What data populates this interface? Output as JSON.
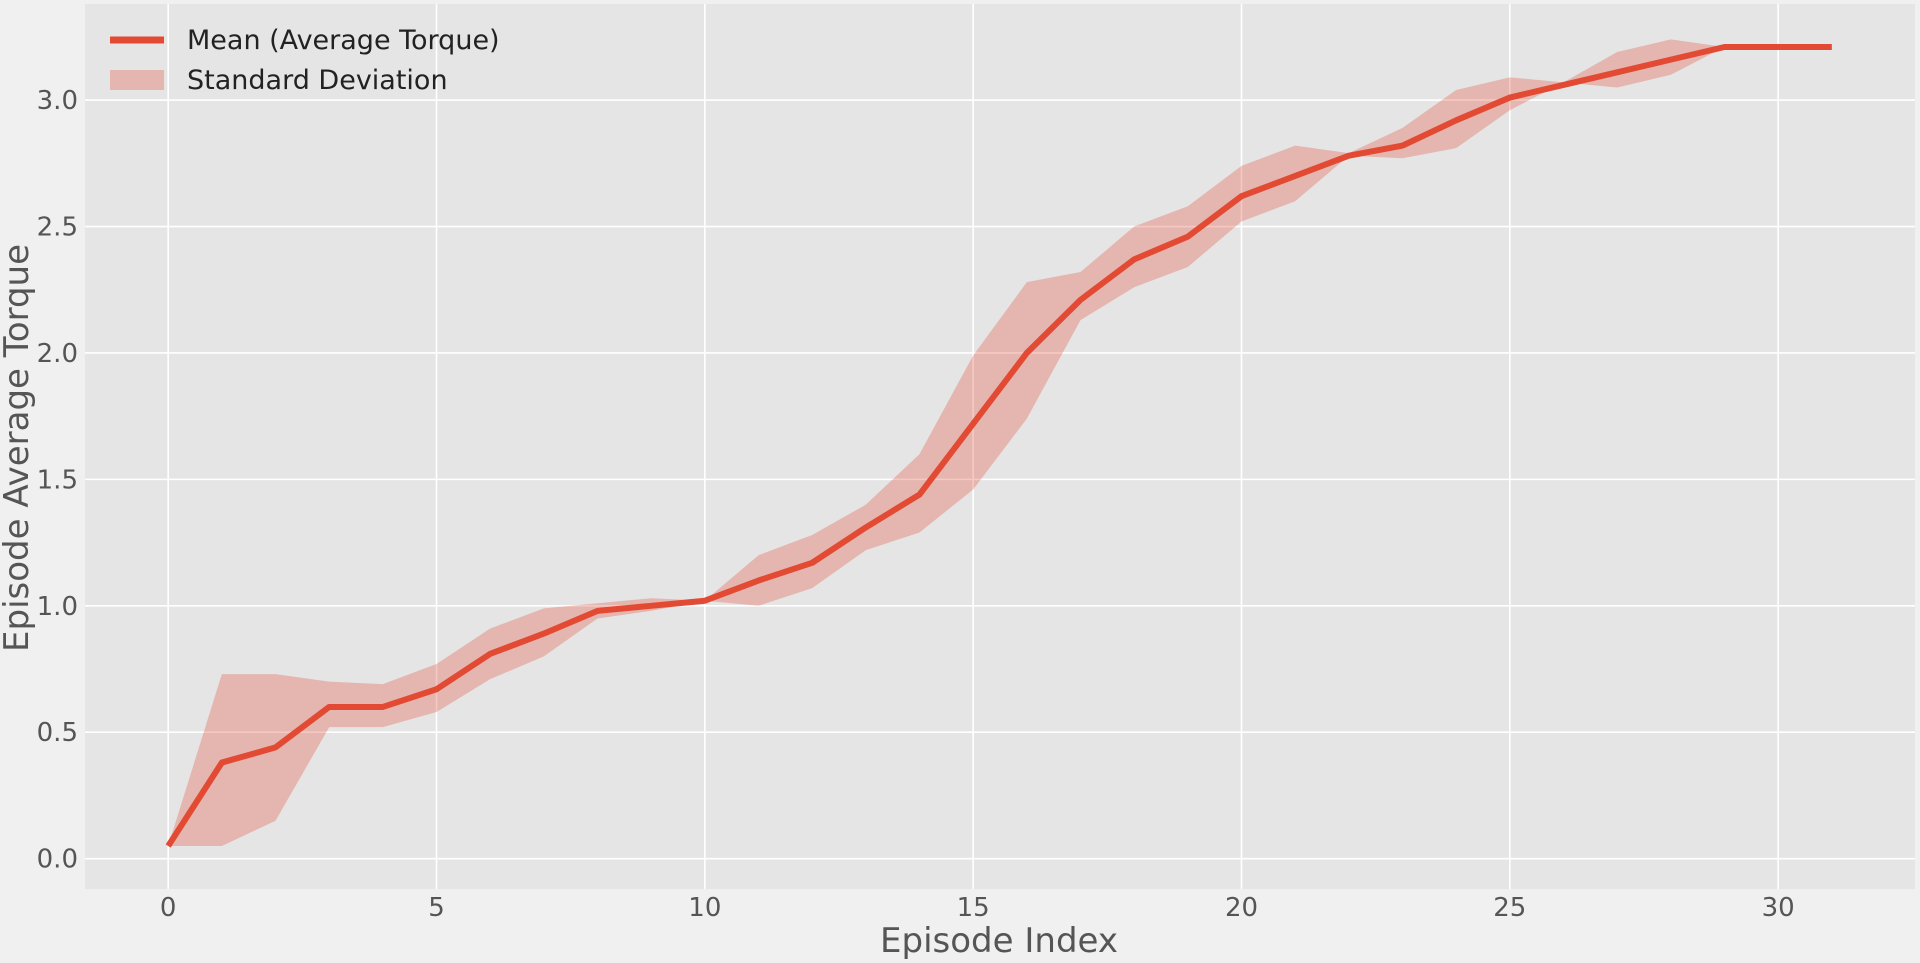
{
  "chart_data": {
    "type": "line",
    "title": "",
    "xlabel": "Episode Index",
    "ylabel": "Episode Average Torque",
    "xlim": [
      -1.55,
      32.55
    ],
    "ylim": [
      -0.12,
      3.38
    ],
    "xticks": [
      0,
      5,
      10,
      15,
      20,
      25,
      30
    ],
    "xtick_labels": [
      "0",
      "5",
      "10",
      "15",
      "20",
      "25",
      "30"
    ],
    "yticks": [
      0.0,
      0.5,
      1.0,
      1.5,
      2.0,
      2.5,
      3.0
    ],
    "ytick_labels": [
      "0.0",
      "0.5",
      "1.0",
      "1.5",
      "2.0",
      "2.5",
      "3.0"
    ],
    "grid": true,
    "legend_position": "top-left",
    "x": [
      0,
      1,
      2,
      3,
      4,
      5,
      6,
      7,
      8,
      9,
      10,
      11,
      12,
      13,
      14,
      15,
      16,
      17,
      18,
      19,
      20,
      21,
      22,
      23,
      24,
      25,
      26,
      27,
      28,
      29,
      30,
      31
    ],
    "series": [
      {
        "name": "Mean (Average Torque)",
        "kind": "line",
        "color": "#e24a33",
        "values": [
          0.05,
          0.38,
          0.44,
          0.6,
          0.6,
          0.67,
          0.81,
          0.89,
          0.98,
          1.0,
          1.02,
          1.1,
          1.17,
          1.31,
          1.44,
          1.72,
          2.0,
          2.21,
          2.37,
          2.46,
          2.62,
          2.7,
          2.78,
          2.82,
          2.92,
          3.01,
          3.06,
          3.11,
          3.16,
          3.21,
          3.21,
          3.21
        ]
      },
      {
        "name": "Standard Deviation",
        "kind": "band",
        "color": "#e24a33",
        "opacity": 0.3,
        "lower": [
          0.05,
          0.05,
          0.15,
          0.52,
          0.52,
          0.58,
          0.71,
          0.8,
          0.95,
          0.98,
          1.02,
          1.0,
          1.07,
          1.22,
          1.29,
          1.46,
          1.74,
          2.13,
          2.26,
          2.34,
          2.52,
          2.6,
          2.78,
          2.77,
          2.81,
          2.96,
          3.07,
          3.05,
          3.1,
          3.21,
          3.21,
          3.21
        ],
        "upper": [
          0.05,
          0.73,
          0.73,
          0.7,
          0.69,
          0.77,
          0.91,
          0.99,
          1.01,
          1.03,
          1.02,
          1.2,
          1.28,
          1.4,
          1.6,
          1.99,
          2.28,
          2.32,
          2.5,
          2.58,
          2.74,
          2.82,
          2.79,
          2.89,
          3.04,
          3.09,
          3.07,
          3.19,
          3.24,
          3.21,
          3.21,
          3.21
        ]
      }
    ],
    "colors": {
      "plot_background": "#e5e5e5",
      "figure_background": "#f0f0f0",
      "grid": "#ffffff",
      "text": "#555555"
    }
  }
}
